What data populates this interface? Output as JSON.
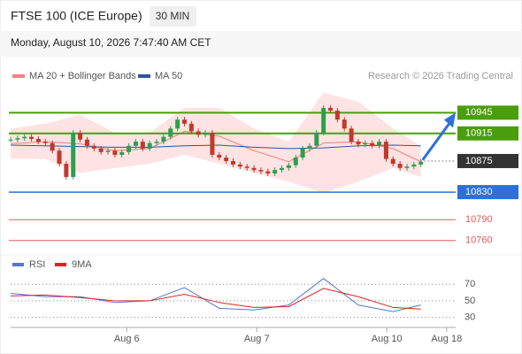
{
  "chart_data": {
    "type": "candlestick",
    "title": "FTSE 100 (ICE Europe)",
    "interval": "30 MIN",
    "subtitle": "Monday, August 10, 2026 7:47:40 AM CET",
    "credit": "Research © 2026 Trading Central",
    "xlim": [
      0,
      64
    ],
    "xticks": [
      {
        "value": 16.7,
        "label": "Aug 6"
      },
      {
        "value": 35.4,
        "label": "Aug 7"
      },
      {
        "value": 54.1,
        "label": "Aug 10"
      },
      {
        "value": 62.7,
        "label": "Aug 18"
      }
    ],
    "ylim": [
      10743,
      10980
    ],
    "up_color": "#2e9e4f",
    "down_color": "#c0392b",
    "close": [
      10906,
      10908,
      10910,
      10907,
      10903,
      10901,
      10890,
      10871,
      10852,
      10916,
      10906,
      10897,
      10893,
      10888,
      10890,
      10884,
      10888,
      10897,
      10903,
      10893,
      10901,
      10903,
      10910,
      10922,
      10935,
      10929,
      10918,
      10913,
      10916,
      10884,
      10880,
      10875,
      10870,
      10867,
      10865,
      10862,
      10860,
      10857,
      10862,
      10865,
      10869,
      10880,
      10893,
      10897,
      10916,
      10952,
      10948,
      10935,
      10922,
      10903,
      10899,
      10901,
      10897,
      10903,
      10878,
      10871,
      10865,
      10867,
      10870,
      10874
    ],
    "overlay_x": [
      0,
      5,
      10,
      15,
      20,
      25,
      30,
      35,
      40,
      45,
      50,
      55,
      59
    ],
    "bands": {
      "name": "MA 20 + Bollinger Bands",
      "color": "#f08080",
      "fill": "#fde3e3",
      "upper": [
        10922,
        10929,
        10942,
        10916,
        10916,
        10952,
        10952,
        10922,
        10903,
        10974,
        10961,
        10922,
        10897
      ],
      "middle": [
        10900,
        10903,
        10900,
        10890,
        10893,
        10918,
        10911,
        10890,
        10874,
        10901,
        10903,
        10893,
        10874
      ],
      "lower": [
        10878,
        10878,
        10858,
        10865,
        10871,
        10884,
        10871,
        10858,
        10845,
        10829,
        10845,
        10865,
        10852
      ]
    },
    "ma50": {
      "name": "MA 50",
      "color": "#2f5597",
      "values": [
        10898,
        10897,
        10896,
        10895,
        10895,
        10897,
        10898,
        10895,
        10893,
        10894,
        10897,
        10898,
        10897
      ]
    },
    "levels": [
      {
        "value": 10945,
        "color": "#4a9e0c",
        "style": "solid",
        "label_style": "box"
      },
      {
        "value": 10915,
        "color": "#4a9e0c",
        "style": "solid",
        "label_style": "box"
      },
      {
        "value": 10875,
        "color": "#333333",
        "style": "dotted",
        "label_style": "box"
      },
      {
        "value": 10830,
        "color": "#2e6fd8",
        "style": "solid",
        "label_style": "box"
      },
      {
        "value": 10790,
        "color": "#e05a5a",
        "style": "thin",
        "label_style": "text"
      },
      {
        "value": 10760,
        "color": "#e05a5a",
        "style": "thin",
        "label_style": "text"
      }
    ],
    "rsi": {
      "ylim": [
        20,
        82
      ],
      "yticks": [
        70,
        50,
        30
      ],
      "series": [
        {
          "name": "RSI",
          "color": "#5577cc",
          "values": [
            59,
            55,
            55,
            48,
            50,
            66,
            41,
            39,
            45,
            77,
            45,
            37,
            45
          ]
        },
        {
          "name": "9MA",
          "color": "#dd2222",
          "values": [
            56,
            57,
            54,
            50,
            50,
            58,
            48,
            42,
            43,
            65,
            55,
            42,
            40
          ]
        }
      ]
    }
  }
}
